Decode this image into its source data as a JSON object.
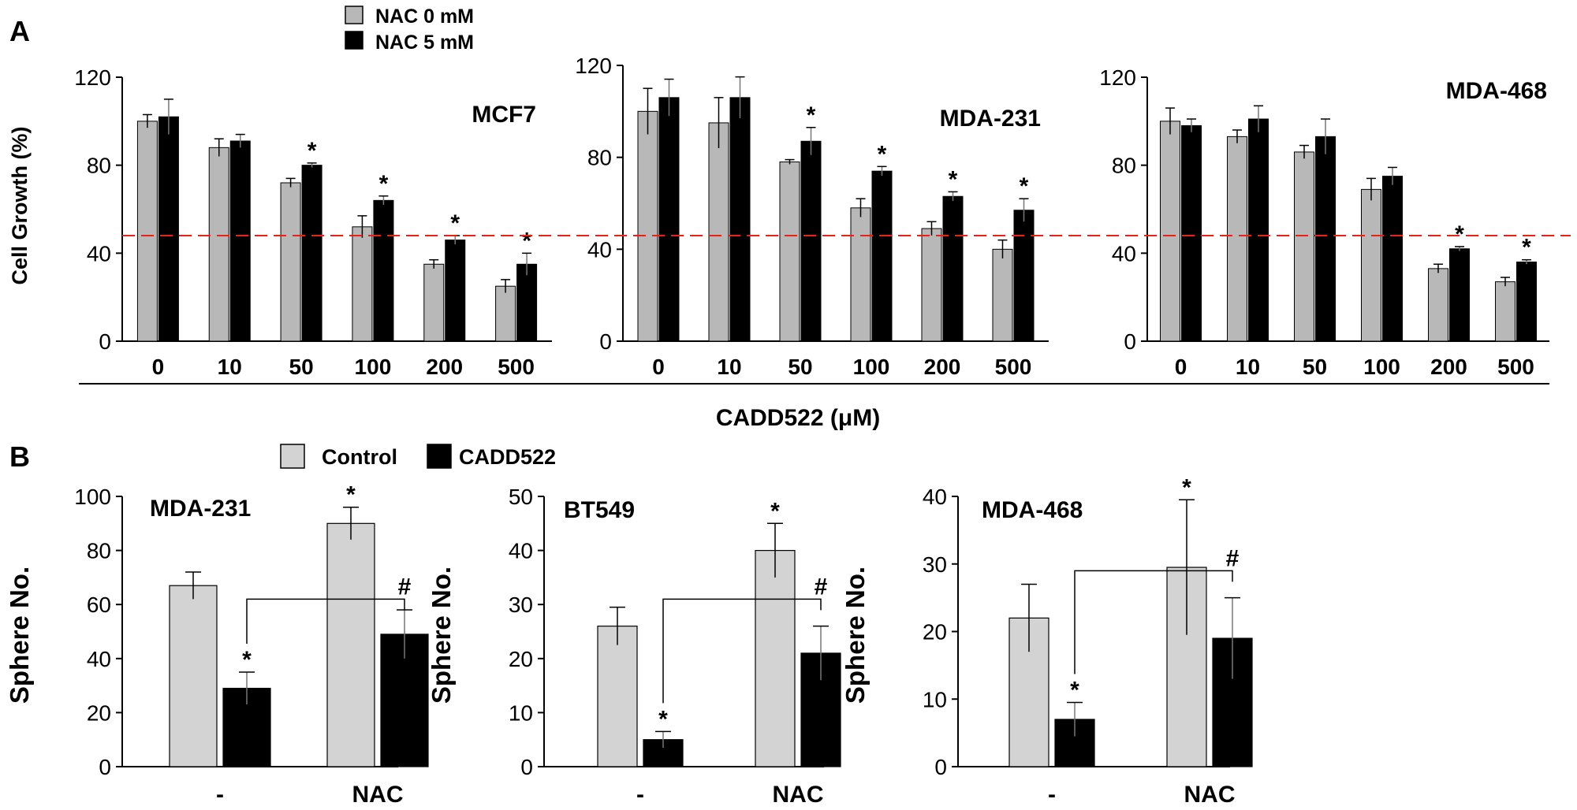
{
  "panel_labels": {
    "a": "A",
    "b": "B"
  },
  "top_legend": {
    "items": [
      "NAC 0 mM",
      "NAC 5 mM"
    ]
  },
  "bottom_legend": {
    "items": [
      "Control",
      "CADD522"
    ]
  },
  "shared_xlabel": "CADD522 (μM)",
  "threshold": {
    "value": 48,
    "color": "#e8221a"
  },
  "colors": {
    "gray": "#b8b8b8",
    "black": "#000000"
  },
  "chart_data": [
    {
      "type": "bar",
      "title": "MCF7",
      "ylabel": "Cell Growth (%)",
      "xlabel": "",
      "ylim": [
        0,
        120
      ],
      "yticks": [
        0,
        40,
        80,
        120
      ],
      "categories": [
        "0",
        "10",
        "50",
        "100",
        "200",
        "500"
      ],
      "series": [
        {
          "name": "NAC 0 mM",
          "values": [
            100,
            88,
            72,
            52,
            35,
            25
          ],
          "errors": [
            3,
            4,
            2,
            5,
            2,
            3
          ]
        },
        {
          "name": "NAC 5 mM",
          "values": [
            102,
            91,
            80,
            64,
            46,
            35
          ],
          "errors": [
            8,
            3,
            1,
            2,
            2,
            5
          ]
        }
      ],
      "annotations": [
        {
          "category": 2,
          "series": 1,
          "text": "*"
        },
        {
          "category": 3,
          "series": 1,
          "text": "*"
        },
        {
          "category": 4,
          "series": 1,
          "text": "*"
        },
        {
          "category": 5,
          "series": 1,
          "text": "*"
        }
      ]
    },
    {
      "type": "bar",
      "title": "MDA-231",
      "ylabel": "",
      "xlabel": "",
      "ylim": [
        0,
        120
      ],
      "yticks": [
        0,
        40,
        80,
        120
      ],
      "categories": [
        "0",
        "10",
        "50",
        "100",
        "200",
        "500"
      ],
      "series": [
        {
          "name": "NAC 0 mM",
          "values": [
            100,
            95,
            78,
            58,
            49,
            40
          ],
          "errors": [
            10,
            11,
            1,
            4,
            3,
            4
          ]
        },
        {
          "name": "NAC 5 mM",
          "values": [
            106,
            106,
            87,
            74,
            63,
            57
          ],
          "errors": [
            8,
            9,
            6,
            2,
            2,
            5
          ]
        }
      ],
      "annotations": [
        {
          "category": 2,
          "series": 1,
          "text": "*"
        },
        {
          "category": 3,
          "series": 1,
          "text": "*"
        },
        {
          "category": 4,
          "series": 1,
          "text": "*"
        },
        {
          "category": 5,
          "series": 1,
          "text": "*"
        }
      ]
    },
    {
      "type": "bar",
      "title": "MDA-468",
      "ylabel": "",
      "xlabel": "",
      "ylim": [
        0,
        120
      ],
      "yticks": [
        0,
        40,
        80,
        120
      ],
      "categories": [
        "0",
        "10",
        "50",
        "100",
        "200",
        "500"
      ],
      "series": [
        {
          "name": "NAC 0 mM",
          "values": [
            100,
            93,
            86,
            69,
            33,
            27
          ],
          "errors": [
            6,
            3,
            3,
            5,
            2,
            2
          ]
        },
        {
          "name": "NAC 5 mM",
          "values": [
            98,
            101,
            93,
            75,
            42,
            36
          ],
          "errors": [
            3,
            6,
            8,
            4,
            1,
            1
          ]
        }
      ],
      "annotations": [
        {
          "category": 4,
          "series": 1,
          "text": "*"
        },
        {
          "category": 5,
          "series": 1,
          "text": "*"
        }
      ]
    },
    {
      "type": "bar",
      "title": "MDA-231",
      "ylabel": "Sphere No.",
      "xlabel": "",
      "ylim": [
        0,
        100
      ],
      "yticks": [
        0,
        20,
        40,
        60,
        80,
        100
      ],
      "categories": [
        "-",
        "NAC"
      ],
      "series": [
        {
          "name": "Control",
          "values": [
            67,
            90
          ],
          "errors": [
            5,
            6
          ]
        },
        {
          "name": "CADD522",
          "values": [
            29,
            49
          ],
          "errors": [
            6,
            9
          ]
        }
      ],
      "annotations": [
        {
          "category": 0,
          "series": 1,
          "text": "*"
        },
        {
          "category": 1,
          "series": 0,
          "text": "*"
        }
      ],
      "bracket": {
        "level": 62,
        "text": "#"
      }
    },
    {
      "type": "bar",
      "title": "BT549",
      "ylabel": "Sphere No.",
      "xlabel": "",
      "ylim": [
        0,
        50
      ],
      "yticks": [
        0,
        10,
        20,
        30,
        40,
        50
      ],
      "categories": [
        "-",
        "NAC"
      ],
      "series": [
        {
          "name": "Control",
          "values": [
            26,
            40
          ],
          "errors": [
            3.5,
            5
          ]
        },
        {
          "name": "CADD522",
          "values": [
            5,
            21
          ],
          "errors": [
            1.5,
            5
          ]
        }
      ],
      "annotations": [
        {
          "category": 0,
          "series": 1,
          "text": "*"
        },
        {
          "category": 1,
          "series": 0,
          "text": "*"
        }
      ],
      "bracket": {
        "level": 31,
        "text": "#"
      }
    },
    {
      "type": "bar",
      "title": "MDA-468",
      "ylabel": "Sphere No.",
      "xlabel": "",
      "ylim": [
        0,
        40
      ],
      "yticks": [
        0,
        10,
        20,
        30,
        40
      ],
      "categories": [
        "-",
        "NAC"
      ],
      "series": [
        {
          "name": "Control",
          "values": [
            22,
            29.5
          ],
          "errors": [
            5,
            10
          ]
        },
        {
          "name": "CADD522",
          "values": [
            7,
            19
          ],
          "errors": [
            2.5,
            6
          ]
        }
      ],
      "annotations": [
        {
          "category": 0,
          "series": 1,
          "text": "*"
        },
        {
          "category": 1,
          "series": 0,
          "text": "*"
        }
      ],
      "bracket": {
        "level": 29,
        "text": "#"
      }
    }
  ]
}
